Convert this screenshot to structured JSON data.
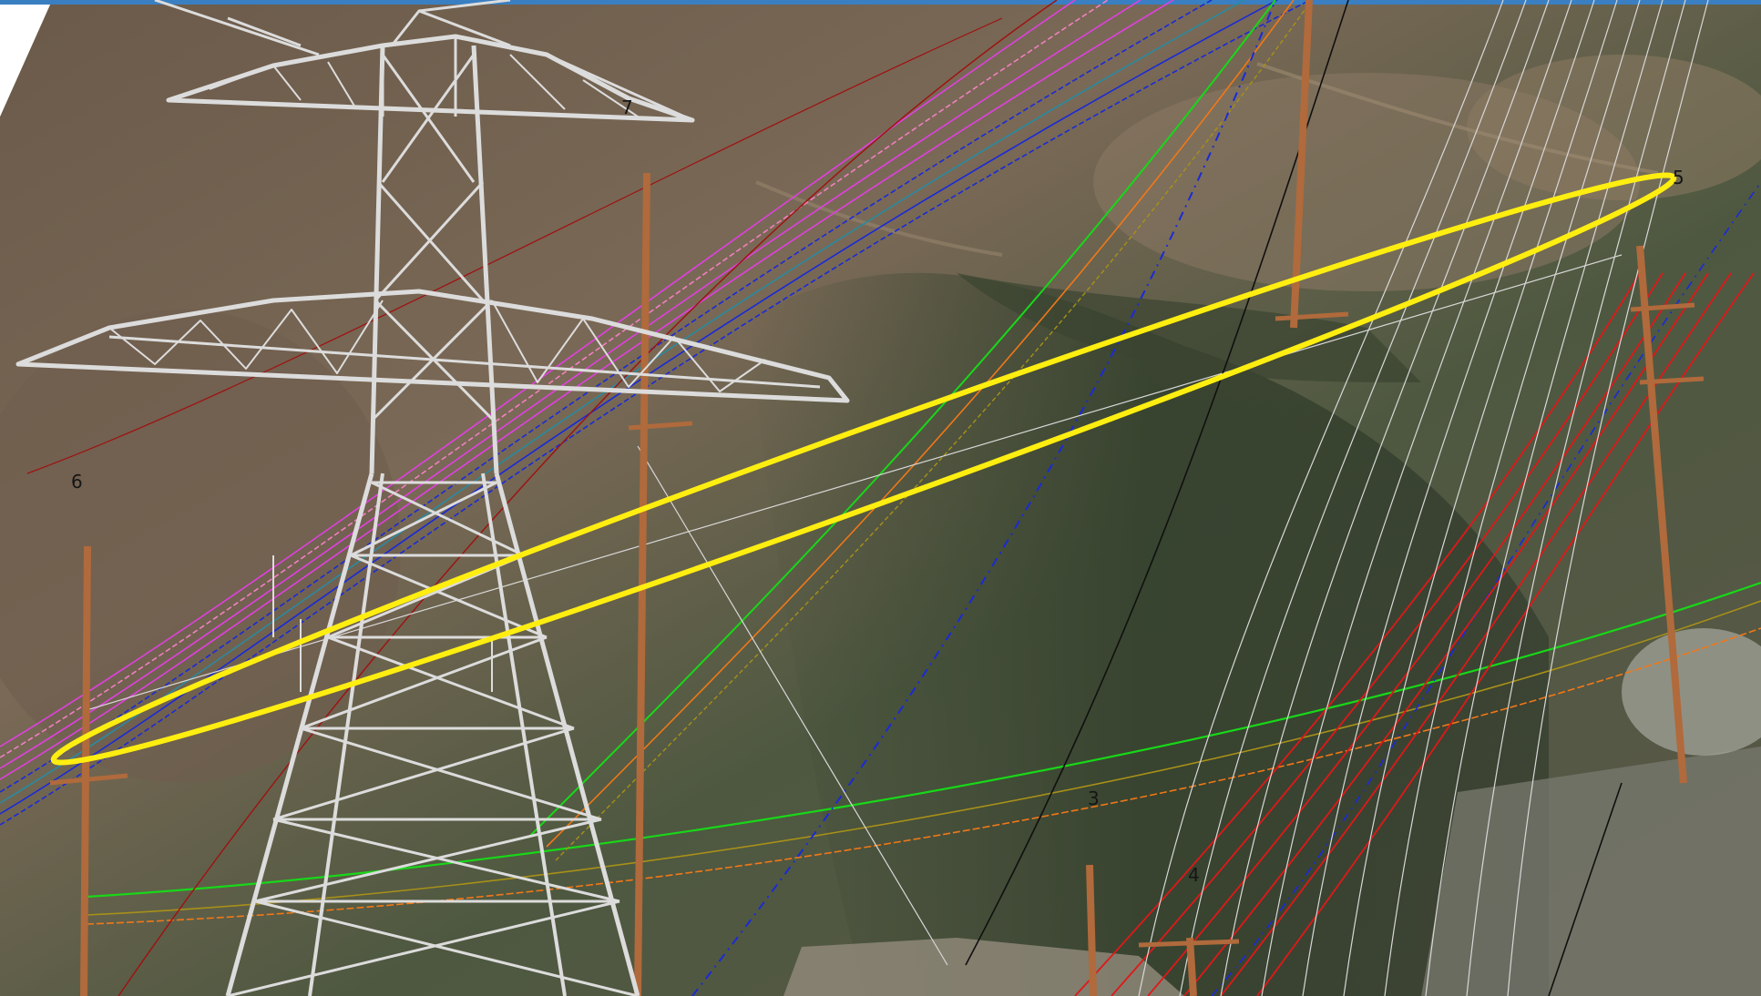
{
  "view": {
    "frame_color": "#3a7fc1",
    "terrain_colors": {
      "sky": "#ffffff",
      "dry": "#7a6a58",
      "shade": "#3f4a34",
      "dark": "#2d332a",
      "road": "#8e8778"
    },
    "highlight_color": "#ffee10"
  },
  "structure_labels": [
    {
      "id": "7",
      "text": "7"
    },
    {
      "id": "5",
      "text": "5"
    },
    {
      "id": "6",
      "text": "6"
    },
    {
      "id": "3",
      "text": "3"
    },
    {
      "id": "4",
      "text": "4"
    }
  ],
  "conductor_colors": {
    "magenta": "#e040e0",
    "pink": "#f080c0",
    "blue": "#1a2ad8",
    "teal": "#2a8aa0",
    "green": "#18d818",
    "orange": "#f07818",
    "olive": "#a89018",
    "red": "#e01818",
    "darkred": "#a01010",
    "white": "#d8d8d8",
    "black": "#101010"
  },
  "structures": {
    "lattice_tower_color": "#dcdcdc",
    "wood_pole_color": "#b06a3c"
  }
}
